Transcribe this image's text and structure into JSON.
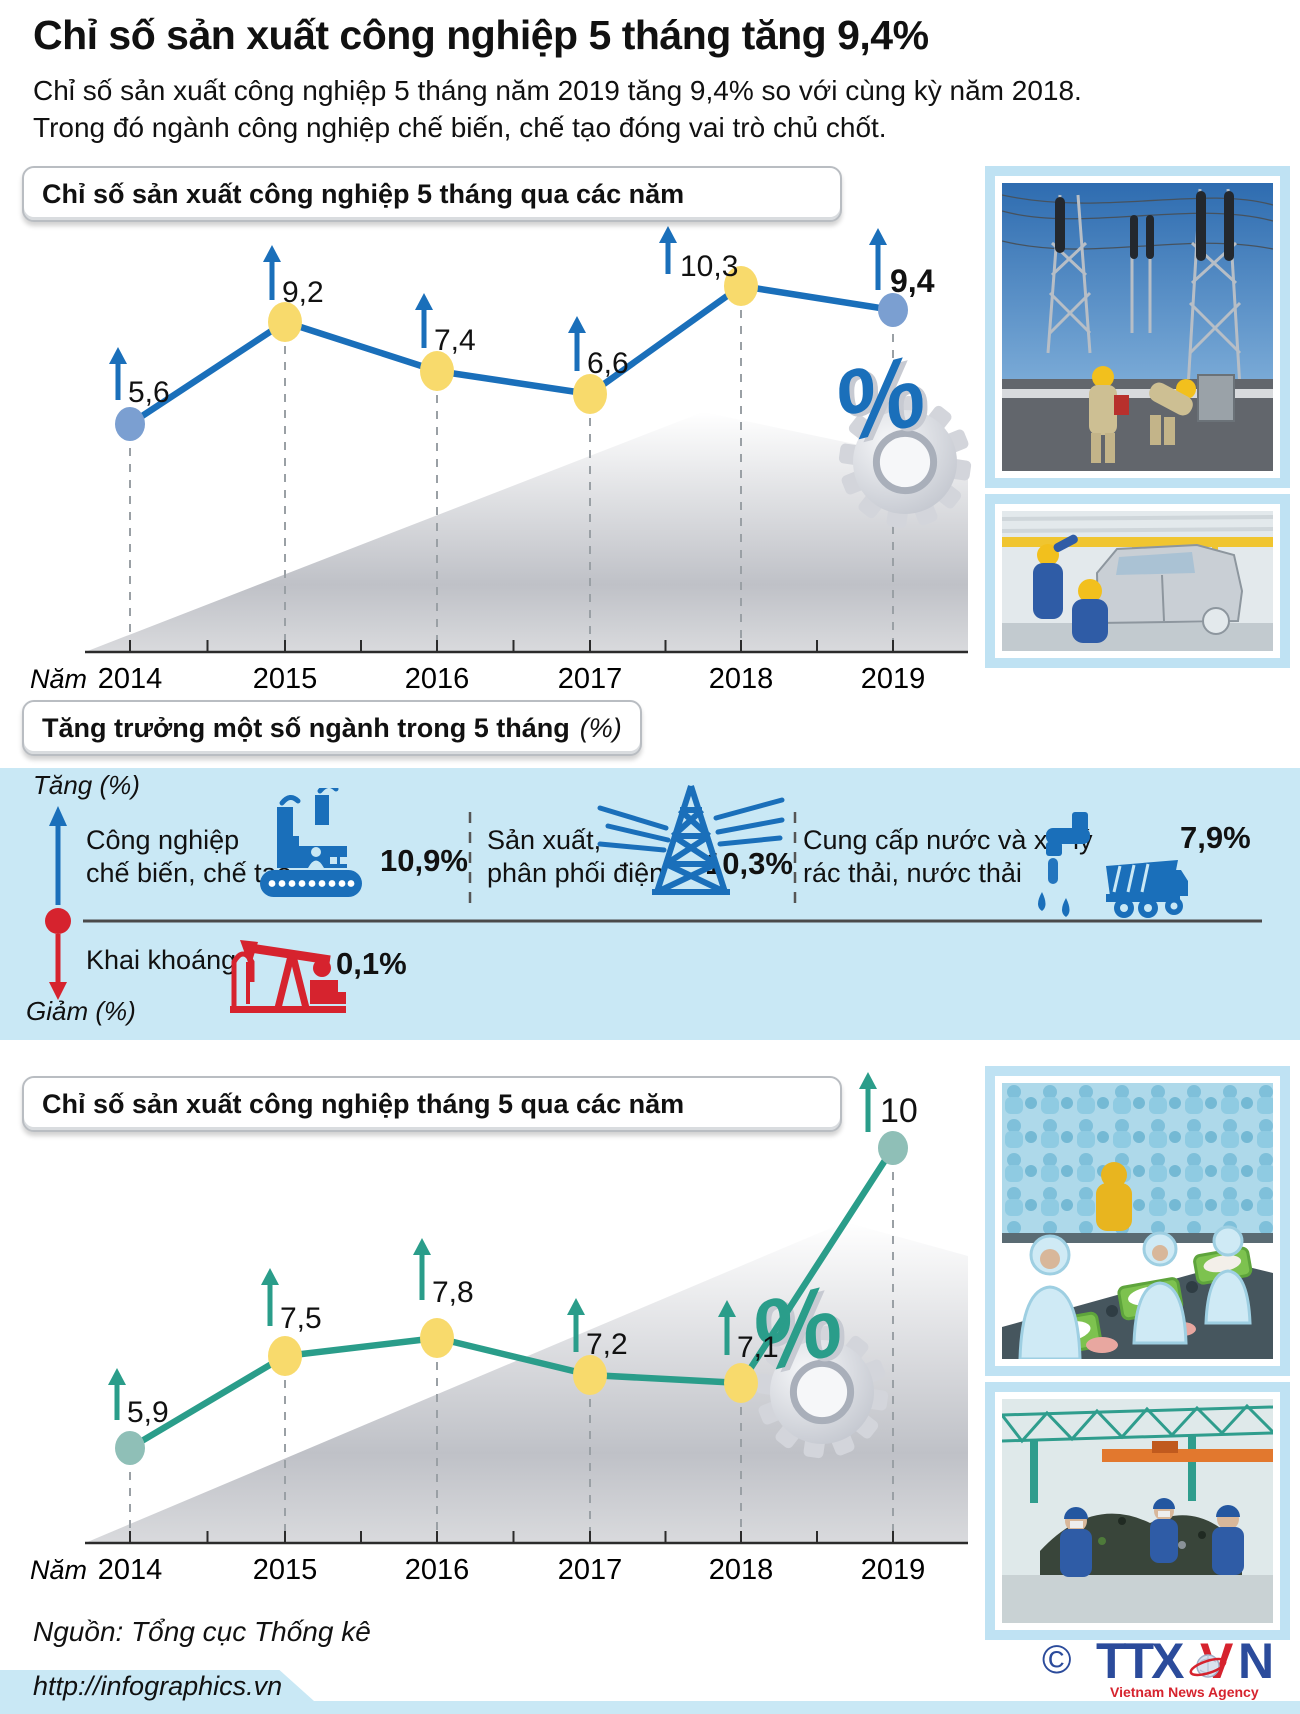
{
  "title": "Chỉ số sản xuất công nghiệp 5 tháng tăng 9,4%",
  "subtitle_line1": "Chỉ số sản xuất công nghiệp 5 tháng năm 2019 tăng 9,4% so với cùng kỳ năm 2018.",
  "subtitle_line2": "Trong đó ngành công nghiệp chế biến, chế tạo đóng vai trò chủ chốt.",
  "colors": {
    "blue": "#1a6fba",
    "teal": "#2a9d8a",
    "red": "#d6232e",
    "yellow": "#f8da6c",
    "band_bg": "#c9e8f5",
    "frame_blue": "#bfe2f3",
    "logo_blue": "#2b4b9b"
  },
  "chart_data": [
    {
      "type": "line",
      "title": "Chỉ số sản xuất công nghiệp 5 tháng qua các năm",
      "xlabel": "Năm",
      "unit": "%",
      "categories": [
        "2014",
        "2015",
        "2016",
        "2017",
        "2018",
        "2019"
      ],
      "values": [
        5.6,
        9.2,
        7.4,
        6.6,
        10.3,
        9.4
      ],
      "value_labels": [
        "5,6",
        "9,2",
        "7,4",
        "6,6",
        "10,3",
        "9,4"
      ],
      "emphasized_label": "9,4",
      "ylim": [
        0,
        12
      ],
      "grid": false,
      "legend": false,
      "line_color": "#1a6fba",
      "marker_color_mid": "#f8da6c",
      "marker_color_end": "#7b9fd1"
    },
    {
      "type": "line",
      "title": "Chỉ số sản xuất công nghiệp tháng 5 qua các năm",
      "xlabel": "Năm",
      "unit": "%",
      "categories": [
        "2014",
        "2015",
        "2016",
        "2017",
        "2018",
        "2019"
      ],
      "values": [
        5.9,
        7.5,
        7.8,
        7.2,
        7.1,
        10
      ],
      "value_labels": [
        "5,9",
        "7,5",
        "7,8",
        "7,2",
        "7,1",
        "10"
      ],
      "emphasized_label": "10",
      "ylim": [
        0,
        12
      ],
      "grid": false,
      "legend": false,
      "line_color": "#2a9d8a",
      "marker_color_mid": "#f8da6c",
      "marker_color_end": "#8fbfb7"
    }
  ],
  "section1_header": "Chỉ số sản xuất công nghiệp 5 tháng qua các năm",
  "section3_header": "Chỉ số sản xuất công nghiệp tháng 5 qua các năm",
  "sectors": {
    "header": "Tăng trưởng một số ngành trong 5 tháng",
    "header_suffix": "(%)",
    "up_label": "Tăng (%)",
    "down_label": "Giảm (%)",
    "increase": [
      {
        "label_line1": "Công nghiệp",
        "label_line2": "chế biến, chế tạo",
        "value": "10,9%",
        "icon": "factory-icon"
      },
      {
        "label_line1": "Sản xuất,",
        "label_line2": "phân phối điện",
        "value": "10,3%",
        "icon": "power-pylon-icon"
      },
      {
        "label_line1": "Cung cấp nước và xử lý",
        "label_line2": "rác thải, nước thải",
        "value": "7,9%",
        "icon": "water-tap-truck-icon"
      }
    ],
    "decrease": [
      {
        "label": "Khai khoáng",
        "value": "0,1%",
        "icon": "oil-pump-icon"
      }
    ]
  },
  "photos": {
    "chart1": [
      {
        "name": "substation-workers-photo"
      },
      {
        "name": "vehicle-assembly-photo"
      }
    ],
    "chart2": [
      {
        "name": "seafood-processing-photo"
      },
      {
        "name": "waste-sorting-photo"
      }
    ]
  },
  "footer": {
    "source": "Nguồn: Tổng cục Thống kê",
    "url": "http://infographics.vn",
    "copyright": "©",
    "logo_ttx": "TTX",
    "logo_v": "V",
    "logo_n": "N",
    "logo_sub": "Vietnam News Agency"
  }
}
